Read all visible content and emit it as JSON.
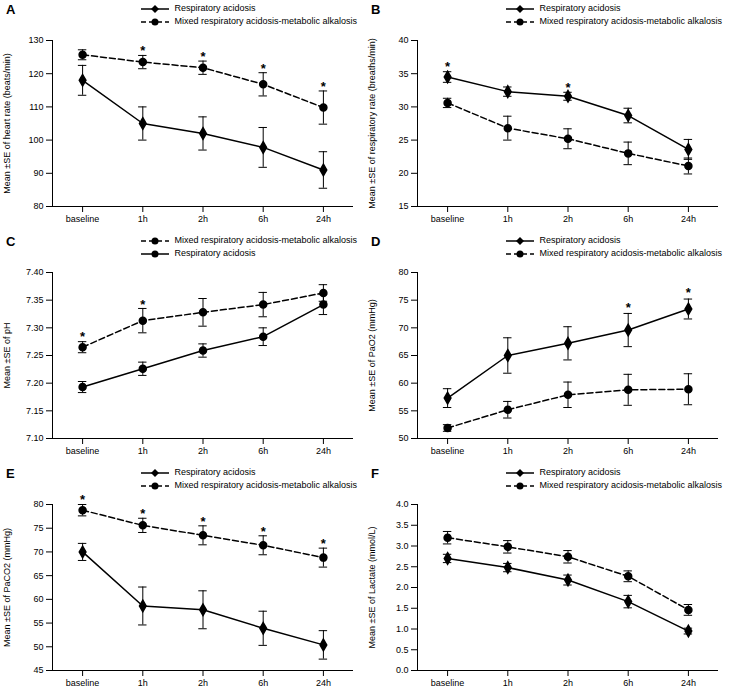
{
  "chart_data": [
    {
      "type": "line",
      "title": "A",
      "ylabel": "Mean ±SE of heart rate (beats/min)",
      "categories": [
        "baseline",
        "1h",
        "2h",
        "6h",
        "24h"
      ],
      "ylim": [
        80,
        130
      ],
      "yticks": [
        80,
        90,
        100,
        110,
        120,
        130
      ],
      "series": [
        {
          "name": "Respiratory acidosis",
          "color": "#000000",
          "marker": "diamond",
          "line_style": "solid",
          "values": [
            118,
            105,
            102,
            97.8,
            91
          ],
          "errors": [
            4.5,
            5,
            5,
            6,
            5.5
          ]
        },
        {
          "name": "Mixed respiratory acidosis-metabolic alkalosis",
          "color": "#000000",
          "marker": "circle",
          "line_style": "dashed",
          "values": [
            125.7,
            123.5,
            121.8,
            116.8,
            109.8
          ],
          "errors": [
            1.5,
            2,
            2,
            3.5,
            5
          ]
        }
      ],
      "annotations": [
        {
          "x": "1h",
          "y": 126.8,
          "text": "*"
        },
        {
          "x": "2h",
          "y": 125.1,
          "text": "*"
        },
        {
          "x": "6h",
          "y": 121.6,
          "text": "*"
        },
        {
          "x": "24h",
          "y": 116.1,
          "text": "*"
        }
      ]
    },
    {
      "type": "line",
      "title": "B",
      "ylabel": "Mean ±SE of respiratory rate (breaths/min)",
      "categories": [
        "baseline",
        "1h",
        "2h",
        "6h",
        "24h"
      ],
      "ylim": [
        15,
        40
      ],
      "yticks": [
        15,
        20,
        25,
        30,
        35,
        40
      ],
      "series": [
        {
          "name": "Respiratory acidosis",
          "color": "#000000",
          "marker": "diamond",
          "line_style": "solid",
          "values": [
            34.5,
            32.3,
            31.6,
            28.7,
            23.6
          ],
          "errors": [
            0.8,
            0.7,
            0.6,
            1.1,
            1.5
          ]
        },
        {
          "name": "Mixed respiratory acidosis-metabolic alkalosis",
          "color": "#000000",
          "marker": "circle",
          "line_style": "dashed",
          "values": [
            30.6,
            26.8,
            25.2,
            23,
            21.1
          ],
          "errors": [
            0.7,
            1.8,
            1.5,
            1.7,
            1.2
          ]
        }
      ],
      "annotations": [
        {
          "x": "baseline",
          "y": 36,
          "text": "*"
        },
        {
          "x": "2h",
          "y": 32.9,
          "text": "*"
        }
      ]
    },
    {
      "type": "line",
      "title": "C",
      "ylabel": "Mean ±SE of pH",
      "categories": [
        "baseline",
        "1h",
        "2h",
        "6h",
        "24h"
      ],
      "ylim": [
        7.1,
        7.4
      ],
      "yticks": [
        {
          "value": 7.1,
          "label": "7.10"
        },
        {
          "value": 7.15,
          "label": "7.15"
        },
        {
          "value": 7.2,
          "label": "7.20"
        },
        {
          "value": 7.25,
          "label": "7.25"
        },
        {
          "value": 7.3,
          "label": "7.30"
        },
        {
          "value": 7.35,
          "label": "7.35"
        },
        {
          "value": 7.4,
          "label": "7.40"
        }
      ],
      "series": [
        {
          "name": "Mixed respiratory acidosis-metabolic alkalosis",
          "color": "#000000",
          "marker": "circle",
          "line_style": "dashed",
          "values": [
            7.265,
            7.313,
            7.328,
            7.342,
            7.363
          ],
          "errors": [
            0.01,
            0.022,
            0.025,
            0.022,
            0.015
          ]
        },
        {
          "name": "Respiratory acidosis",
          "color": "#000000",
          "marker": "circle",
          "line_style": "solid",
          "values": [
            7.193,
            7.226,
            7.259,
            7.284,
            7.342
          ],
          "errors": [
            0.01,
            0.012,
            0.012,
            0.016,
            0.018
          ]
        }
      ],
      "annotations": [
        {
          "x": "baseline",
          "y": 7.283,
          "text": "*"
        },
        {
          "x": "1h",
          "y": 7.342,
          "text": "*"
        }
      ]
    },
    {
      "type": "line",
      "title": "D",
      "ylabel": "Mean ±SE of PaO2 (mmHg)",
      "categories": [
        "baseline",
        "1h",
        "2h",
        "6h",
        "24h"
      ],
      "ylim": [
        50,
        80
      ],
      "yticks": [
        50,
        55,
        60,
        65,
        70,
        75,
        80
      ],
      "series": [
        {
          "name": "Respiratory acidosis",
          "color": "#000000",
          "marker": "diamond",
          "line_style": "solid",
          "values": [
            57.3,
            65,
            67.2,
            69.6,
            73.4
          ],
          "errors": [
            1.7,
            3.2,
            3,
            3,
            1.8
          ]
        },
        {
          "name": "Mixed respiratory acidosis-metabolic alkalosis",
          "color": "#000000",
          "marker": "circle",
          "line_style": "dashed",
          "values": [
            51.9,
            55.2,
            57.9,
            58.8,
            58.9
          ],
          "errors": [
            0.6,
            1.5,
            2.3,
            2.8,
            2.8
          ]
        }
      ],
      "annotations": [
        {
          "x": "6h",
          "y": 73.6,
          "text": "*"
        },
        {
          "x": "24h",
          "y": 76.3,
          "text": "*"
        }
      ]
    },
    {
      "type": "line",
      "title": "E",
      "ylabel": "Mean ±SE of PaCO2 (mmHg)",
      "categories": [
        "baseline",
        "1h",
        "2h",
        "6h",
        "24h"
      ],
      "ylim": [
        45,
        80
      ],
      "yticks": [
        45,
        50,
        55,
        60,
        65,
        70,
        75,
        80
      ],
      "series": [
        {
          "name": "Respiratory acidosis",
          "color": "#000000",
          "marker": "diamond",
          "line_style": "solid",
          "values": [
            70,
            58.6,
            57.8,
            53.9,
            50.4
          ],
          "errors": [
            1.8,
            4,
            4,
            3.6,
            3
          ]
        },
        {
          "name": "Mixed respiratory acidosis-metabolic alkalosis",
          "color": "#000000",
          "marker": "circle",
          "line_style": "dashed",
          "values": [
            78.8,
            75.6,
            73.5,
            71.4,
            68.8
          ],
          "errors": [
            1.2,
            1.5,
            2,
            2,
            2
          ]
        }
      ],
      "annotations": [
        {
          "x": "baseline",
          "y": 80.9,
          "text": "*"
        },
        {
          "x": "1h",
          "y": 78,
          "text": "*"
        },
        {
          "x": "2h",
          "y": 76.4,
          "text": "*"
        },
        {
          "x": "6h",
          "y": 74.3,
          "text": "*"
        },
        {
          "x": "24h",
          "y": 71.7,
          "text": "*"
        }
      ]
    },
    {
      "type": "line",
      "title": "F",
      "ylabel": "Mean ±SE of Lactate (mmol/L)",
      "categories": [
        "baseline",
        "1h",
        "2h",
        "6h",
        "24h"
      ],
      "ylim": [
        0,
        4
      ],
      "yticks": [
        {
          "value": 0,
          "label": "0.0"
        },
        {
          "value": 0.5,
          "label": "0.5"
        },
        {
          "value": 1,
          "label": "1.0"
        },
        {
          "value": 1.5,
          "label": "1.5"
        },
        {
          "value": 2,
          "label": "2.0"
        },
        {
          "value": 2.5,
          "label": "2.5"
        },
        {
          "value": 3,
          "label": "3.0"
        },
        {
          "value": 3.5,
          "label": "3.5"
        },
        {
          "value": 4,
          "label": "4.0"
        }
      ],
      "series": [
        {
          "name": "Respiratory acidosis",
          "color": "#000000",
          "marker": "diamond",
          "line_style": "solid",
          "values": [
            2.7,
            2.48,
            2.18,
            1.66,
            0.95
          ],
          "errors": [
            0.1,
            0.1,
            0.12,
            0.15,
            0.07
          ]
        },
        {
          "name": "Mixed respiratory acidosis-metabolic alkalosis",
          "color": "#000000",
          "marker": "circle",
          "line_style": "dashed",
          "values": [
            3.2,
            2.98,
            2.74,
            2.27,
            1.46
          ],
          "errors": [
            0.15,
            0.15,
            0.15,
            0.13,
            0.13
          ]
        }
      ],
      "annotations": []
    }
  ]
}
